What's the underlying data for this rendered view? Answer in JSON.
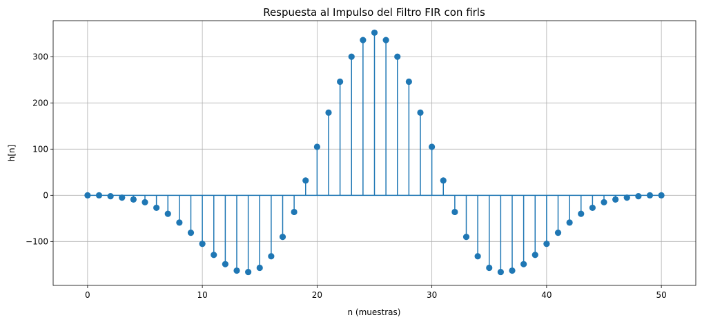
{
  "chart_data": {
    "type": "stem",
    "title": "Respuesta al Impulso del Filtro FIR con firls",
    "xlabel": "n (muestras)",
    "ylabel": "h[n]",
    "xlim": [
      -3,
      53
    ],
    "ylim": [
      -195,
      378
    ],
    "xticks": [
      0,
      10,
      20,
      30,
      40,
      50
    ],
    "yticks": [
      -100,
      0,
      100,
      200,
      300
    ],
    "grid": true,
    "color": "#1f77b4",
    "x": [
      0,
      1,
      2,
      3,
      4,
      5,
      6,
      7,
      8,
      9,
      10,
      11,
      12,
      13,
      14,
      15,
      16,
      17,
      18,
      19,
      20,
      21,
      22,
      23,
      24,
      25,
      26,
      27,
      28,
      29,
      30,
      31,
      32,
      33,
      34,
      35,
      36,
      37,
      38,
      39,
      40,
      41,
      42,
      43,
      44,
      45,
      46,
      47,
      48,
      49,
      50
    ],
    "values": [
      0,
      0,
      -2,
      -5,
      -9,
      -15,
      -27,
      -40,
      -59,
      -81,
      -105,
      -129,
      -149,
      -163,
      -166,
      -157,
      -132,
      -90,
      -36,
      32,
      105,
      179,
      246,
      300,
      336,
      352,
      336,
      300,
      246,
      179,
      105,
      32,
      -36,
      -90,
      -132,
      -157,
      -166,
      -163,
      -149,
      -129,
      -105,
      -81,
      -59,
      -40,
      -27,
      -15,
      -9,
      -5,
      -2,
      0,
      0
    ]
  }
}
